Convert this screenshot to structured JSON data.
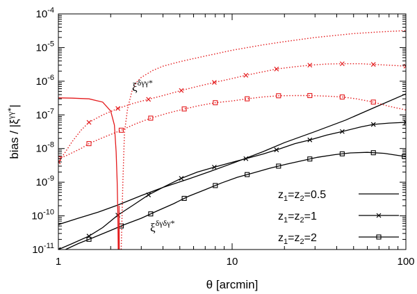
{
  "chart_data": {
    "type": "line",
    "xlabel": "θ [arcmin]",
    "ylabel_main": "bias / |ξ",
    "ylabel_sup": "γγ*",
    "ylabel_end": "|",
    "xscale": "log",
    "yscale": "log",
    "xlim": [
      1,
      100
    ],
    "ylim": [
      1e-11,
      0.0001
    ],
    "grid": false,
    "x_ticks": [
      {
        "value": 1,
        "label": "1"
      },
      {
        "value": 10,
        "label": "10"
      },
      {
        "value": 100,
        "label": "100"
      }
    ],
    "y_ticks": [
      {
        "value": 1e-11,
        "base": "10",
        "exp": "-11"
      },
      {
        "value": 1e-10,
        "base": "10",
        "exp": "-10"
      },
      {
        "value": 1e-09,
        "base": "10",
        "exp": "-9"
      },
      {
        "value": 1e-08,
        "base": "10",
        "exp": "-8"
      },
      {
        "value": 1e-07,
        "base": "10",
        "exp": "-7"
      },
      {
        "value": 1e-06,
        "base": "10",
        "exp": "-6"
      },
      {
        "value": 1e-05,
        "base": "10",
        "exp": "-5"
      },
      {
        "value": 0.0001,
        "base": "10",
        "exp": "-4"
      }
    ],
    "legend_position": "bottom-right",
    "legend": [
      {
        "label_prefix": "z",
        "s1": "1",
        "eq": "=z",
        "s2": "2",
        "val": "=0.5",
        "marker": "none"
      },
      {
        "label_prefix": "z",
        "s1": "1",
        "eq": "=z",
        "s2": "2",
        "val": "=1",
        "marker": "cross"
      },
      {
        "label_prefix": "z",
        "s1": "1",
        "eq": "=z",
        "s2": "2",
        "val": "=2",
        "marker": "square"
      }
    ],
    "annotations": [
      {
        "base": "ξ",
        "sup": "δγγ*",
        "target": "red dotted curves"
      },
      {
        "base": "ξ",
        "sup": "δγδγ*",
        "target": "red solid curves"
      }
    ],
    "series": [
      {
        "group": "black",
        "z": "0.5",
        "color": "#000000",
        "dash": "none",
        "marker": "none",
        "x": [
          1,
          1.3,
          1.7,
          2.2,
          3,
          4,
          5.5,
          7.5,
          10,
          15,
          20,
          30,
          45,
          65,
          100
        ],
        "y": [
          5.5e-11,
          8.5e-11,
          1.3e-10,
          2.1e-10,
          4e-10,
          7e-10,
          1.2e-09,
          2.1e-09,
          3.6e-09,
          8e-09,
          1.5e-08,
          3.2e-08,
          7e-08,
          1.6e-07,
          4.2e-07
        ]
      },
      {
        "group": "black",
        "z": "1",
        "color": "#000000",
        "dash": "none",
        "marker": "cross",
        "x": [
          1,
          1.2,
          1.5,
          1.8,
          2.2,
          2.7,
          3.3,
          4.1,
          5.1,
          6.3,
          7.9,
          10,
          12,
          15,
          19,
          23,
          28,
          35,
          43,
          55,
          65,
          80,
          100
        ],
        "y": [
          1e-11,
          1.5e-11,
          2.5e-11,
          4.5e-11,
          1.05e-10,
          2.1e-10,
          4.2e-10,
          7.5e-10,
          1.3e-09,
          2e-09,
          2.8e-09,
          3.9e-09,
          5e-09,
          6.8e-09,
          1e-08,
          1.4e-08,
          1.8e-08,
          2.5e-08,
          3.2e-08,
          4.4e-08,
          5.2e-08,
          5.7e-08,
          6e-08
        ],
        "marker_x": [
          1,
          1.5,
          2.2,
          3.3,
          5.1,
          7.9,
          12,
          18,
          28,
          43,
          65,
          100
        ]
      },
      {
        "group": "black",
        "z": "2",
        "color": "#000000",
        "dash": "none",
        "marker": "square",
        "x": [
          1.1,
          1.3,
          1.6,
          2,
          2.4,
          3,
          3.7,
          4.6,
          5.6,
          7,
          8.7,
          10.7,
          13.3,
          16.5,
          20.4,
          25,
          31,
          39,
          48,
          60,
          75,
          93,
          100
        ],
        "y": [
          1e-11,
          1.5e-11,
          2.3e-11,
          3.7e-11,
          5.5e-11,
          8.5e-11,
          1.4e-10,
          2.3e-10,
          3.8e-10,
          6e-10,
          9.5e-10,
          1.4e-09,
          1.9e-09,
          2.6e-09,
          3.4e-09,
          4.3e-09,
          5.5e-09,
          6.6e-09,
          7.4e-09,
          7.7e-09,
          7.2e-09,
          6.1e-09,
          5.7e-09
        ],
        "marker_x": [
          1.5,
          2.3,
          3.4,
          5.3,
          8,
          12.2,
          18.5,
          28,
          43,
          65,
          98
        ]
      },
      {
        "group": "red-solid",
        "z": "0.5",
        "color": "#e41a1c",
        "dash": "none",
        "marker": "none",
        "x": [
          1,
          1.2,
          1.5,
          1.8,
          2.0,
          2.1,
          2.15,
          2.18,
          2.2,
          2.21
        ],
        "y": [
          3.2e-07,
          3.15e-07,
          3e-07,
          2.4e-07,
          1.3e-07,
          5e-08,
          8e-09,
          1e-09,
          1e-10,
          1e-11
        ]
      },
      {
        "group": "red-solid",
        "z": "0.5b",
        "color": "#e41a1c",
        "dash": "none",
        "marker": "none",
        "x": [
          2.23,
          2.235,
          2.24
        ],
        "y": [
          1e-11,
          2e-10,
          1e-11
        ]
      },
      {
        "group": "red-dotted",
        "z": "0.5",
        "color": "#e41a1c",
        "dash": "1.5,2.5",
        "marker": "none",
        "x": [
          2.3,
          2.35,
          2.4,
          2.5,
          2.65,
          2.8,
          3.0,
          3.5,
          4,
          5,
          6,
          8,
          10,
          15,
          20,
          30,
          50,
          70,
          100
        ],
        "y": [
          1e-11,
          1e-09,
          3e-08,
          1.5e-07,
          5e-07,
          9e-07,
          1.3e-06,
          2.1e-06,
          2.8e-06,
          3.8e-06,
          4.7e-06,
          6.5e-06,
          8.3e-06,
          1.2e-05,
          1.5e-05,
          2e-05,
          2.6e-05,
          2.9e-05,
          3.2e-05
        ]
      },
      {
        "group": "red-dotted",
        "z": "1",
        "color": "#e41a1c",
        "dash": "1.5,2.5",
        "marker": "cross",
        "x": [
          1,
          1.1,
          1.2,
          1.35,
          1.5,
          1.8,
          2.2,
          2.7,
          3.3,
          4.1,
          5.1,
          6.3,
          7.9,
          10,
          12,
          15,
          18,
          23,
          28,
          35,
          43,
          55,
          65,
          80,
          100
        ],
        "y": [
          4e-09,
          8e-09,
          1.6e-08,
          3.5e-08,
          6e-08,
          1e-07,
          1.55e-07,
          2.2e-07,
          2.9e-07,
          3.9e-07,
          5.3e-07,
          7e-07,
          9.2e-07,
          1.2e-06,
          1.5e-06,
          1.9e-06,
          2.3e-06,
          2.7e-06,
          3e-06,
          3.25e-06,
          3.3e-06,
          3.3e-06,
          3.15e-06,
          3e-06,
          2.8e-06
        ],
        "marker_x": [
          1,
          1.5,
          2.2,
          3.3,
          5.1,
          7.9,
          12,
          18,
          28,
          43,
          65,
          100
        ]
      },
      {
        "group": "red-dotted",
        "z": "2",
        "color": "#e41a1c",
        "dash": "1.5,2.5",
        "marker": "square",
        "x": [
          1,
          1.1,
          1.2,
          1.35,
          1.5,
          1.8,
          2.3,
          2.8,
          3.4,
          4.2,
          5.3,
          6.5,
          8,
          10,
          12.2,
          15,
          18.5,
          23,
          28,
          35,
          43,
          52,
          65,
          80,
          100
        ],
        "y": [
          5e-09,
          6e-09,
          7.5e-09,
          1e-08,
          1.4e-08,
          2.1e-08,
          3.5e-08,
          5.5e-08,
          8e-08,
          1.1e-07,
          1.5e-07,
          1.9e-07,
          2.3e-07,
          2.6e-07,
          3e-07,
          3.4e-07,
          3.7e-07,
          3.75e-07,
          3.75e-07,
          3.6e-07,
          3.4e-07,
          3e-07,
          2.4e-07,
          1.8e-07,
          1.4e-07
        ],
        "marker_x": [
          1,
          1.5,
          2.3,
          3.4,
          5.3,
          8,
          12.2,
          18.5,
          28,
          43,
          65
        ]
      }
    ]
  }
}
